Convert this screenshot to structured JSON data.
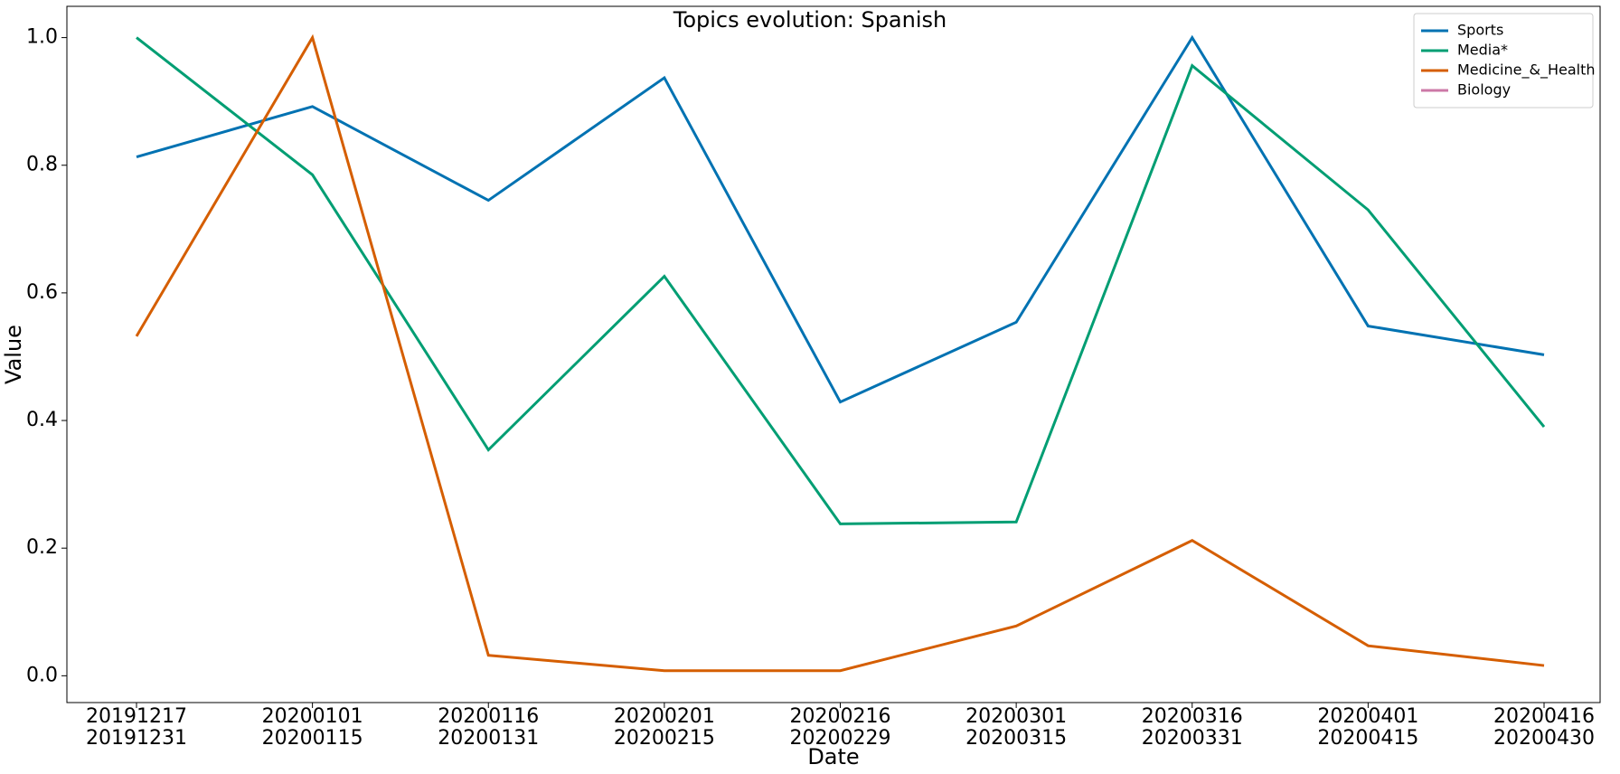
{
  "chart_data": {
    "type": "line",
    "title": "Topics evolution: Spanish",
    "x_label": "Date",
    "y_label": "Value",
    "categories": [
      "20191217\n20191231",
      "20200101\n20200115",
      "20200116\n20200131",
      "20200201\n20200215",
      "20200216\n20200229",
      "20200301\n20200315",
      "20200316\n20200331",
      "20200401\n20200415",
      "20200416\n20200430"
    ],
    "series": [
      {
        "name": "Sports",
        "color": "#0072b2",
        "values": [
          0.813,
          0.892,
          0.745,
          0.937,
          0.429,
          0.554,
          1.0,
          0.548,
          0.503
        ]
      },
      {
        "name": "Media*",
        "color": "#009e73",
        "values": [
          1.0,
          0.785,
          0.354,
          0.626,
          0.238,
          0.241,
          0.956,
          0.73,
          0.39
        ]
      },
      {
        "name": "Medicine_&_Health",
        "color": "#d55e00",
        "values": [
          0.532,
          1.0,
          0.032,
          0.008,
          0.008,
          0.078,
          0.212,
          0.047,
          0.016
        ]
      },
      {
        "name": "Biology",
        "color": "#cc79a7",
        "values": [
          null,
          null,
          null,
          null,
          null,
          null,
          null,
          null,
          null
        ]
      }
    ],
    "ylim": [
      -0.042,
      1.049
    ],
    "yticks": [
      {
        "value": 0,
        "label": "0.0"
      },
      0.2,
      0.4,
      0.6,
      0.8,
      {
        "value": 1,
        "label": "1.0"
      }
    ],
    "legend": "upper right",
    "grid": false
  }
}
